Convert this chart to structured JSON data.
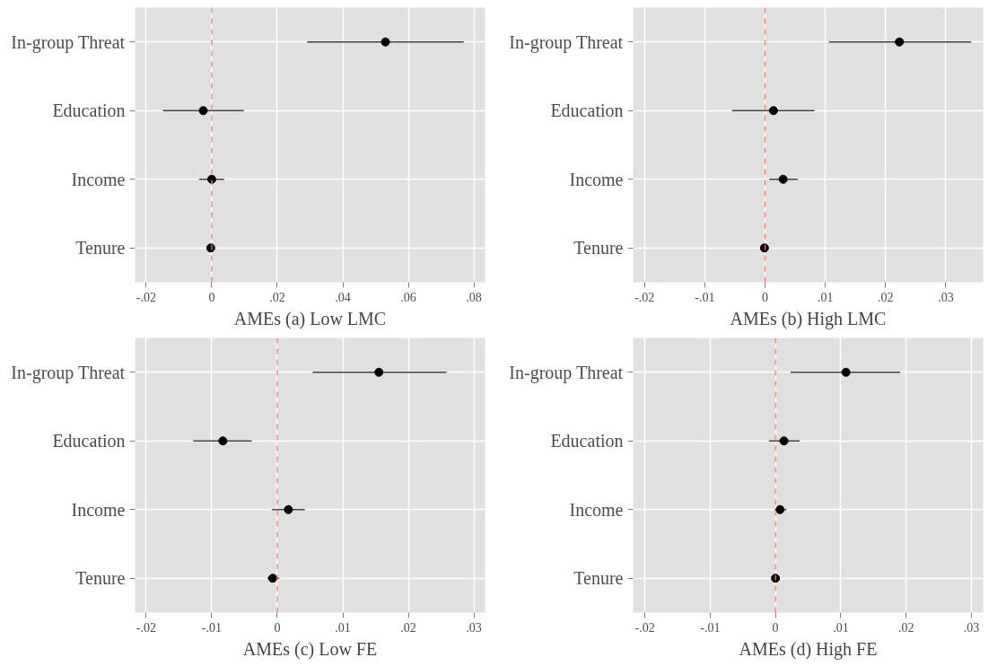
{
  "chart_data": [
    {
      "type": "scatter",
      "orientation": "horizontal",
      "xlabel": "AMEs (a) Low LMC",
      "categories": [
        "In-group Threat",
        "Education",
        "Income",
        "Tenure"
      ],
      "values": [
        0.053,
        -0.0026,
        0.0,
        -0.0003
      ],
      "errors": [
        [
          0.0291,
          0.0769
        ],
        [
          -0.0149,
          0.0098
        ],
        [
          -0.0039,
          0.0038
        ],
        null
      ],
      "color": "#000000",
      "marker": "circle",
      "xlim": [
        -0.0234,
        0.0834
      ],
      "xticks": [
        {
          "value": -0.02,
          "label": "-.02"
        },
        0,
        {
          "value": 0.02,
          "label": ".02"
        },
        {
          "value": 0.04,
          "label": ".04"
        },
        {
          "value": 0.06,
          "label": ".06"
        },
        {
          "value": 0.08,
          "label": ".08"
        }
      ],
      "ref_lines": [
        {
          "axis": "x",
          "value": 0,
          "color": "#f8766d",
          "line_style": "dashed"
        }
      ],
      "grid": true
    },
    {
      "type": "scatter",
      "orientation": "horizontal",
      "xlabel": "AMEs (b) High LMC",
      "categories": [
        "In-group Threat",
        "Education",
        "Income",
        "Tenure"
      ],
      "values": [
        0.0223,
        0.0014,
        0.003,
        -0.0001
      ],
      "errors": [
        [
          0.0106,
          0.0342
        ],
        [
          -0.0055,
          0.0082
        ],
        [
          0.0007,
          0.0054
        ],
        null
      ],
      "color": "#000000",
      "marker": "circle",
      "xlim": [
        -0.0219,
        0.0362
      ],
      "xticks": [
        {
          "value": -0.02,
          "label": "-.02"
        },
        {
          "value": -0.01,
          "label": "-.01"
        },
        0,
        {
          "value": 0.01,
          "label": ".01"
        },
        {
          "value": 0.02,
          "label": ".02"
        },
        {
          "value": 0.03,
          "label": ".03"
        }
      ],
      "ref_lines": [
        {
          "axis": "x",
          "value": 0,
          "color": "#f8766d",
          "line_style": "dashed"
        }
      ],
      "grid": true
    },
    {
      "type": "scatter",
      "orientation": "horizontal",
      "xlabel": "AMEs (c) Low FE",
      "categories": [
        "In-group Threat",
        "Education",
        "Income",
        "Tenure"
      ],
      "values": [
        0.0155,
        -0.0083,
        0.0017,
        -0.0007
      ],
      "errors": [
        [
          0.0054,
          0.0258
        ],
        [
          -0.0128,
          -0.0039
        ],
        [
          -0.0008,
          0.0042
        ],
        [
          -0.0015,
          0.0003
        ]
      ],
      "color": "#000000",
      "marker": "circle",
      "xlim": [
        -0.0217,
        0.0317
      ],
      "xticks": [
        {
          "value": -0.02,
          "label": "-.02"
        },
        {
          "value": -0.01,
          "label": "-.01"
        },
        0,
        {
          "value": 0.01,
          "label": ".01"
        },
        {
          "value": 0.02,
          "label": ".02"
        },
        {
          "value": 0.03,
          "label": ".03"
        }
      ],
      "ref_lines": [
        {
          "axis": "x",
          "value": 0,
          "color": "#f8766d",
          "line_style": "dashed"
        }
      ],
      "grid": true
    },
    {
      "type": "scatter",
      "orientation": "horizontal",
      "xlabel": "AMEs (d) High FE",
      "categories": [
        "In-group Threat",
        "Education",
        "Income",
        "Tenure"
      ],
      "values": [
        0.0108,
        0.0013,
        0.0007,
        0.0
      ],
      "errors": [
        [
          0.0023,
          0.0191
        ],
        [
          -0.001,
          0.0037
        ],
        [
          -0.0001,
          0.0017
        ],
        null
      ],
      "color": "#000000",
      "marker": "circle",
      "xlim": [
        -0.0218,
        0.0318
      ],
      "xticks": [
        {
          "value": -0.02,
          "label": "-.02"
        },
        {
          "value": -0.01,
          "label": "-.01"
        },
        0,
        {
          "value": 0.01,
          "label": ".01"
        },
        {
          "value": 0.02,
          "label": ".02"
        },
        {
          "value": 0.03,
          "label": ".03"
        }
      ],
      "ref_lines": [
        {
          "axis": "x",
          "value": 0,
          "color": "#f8766d",
          "line_style": "dashed"
        }
      ],
      "grid": true
    }
  ]
}
